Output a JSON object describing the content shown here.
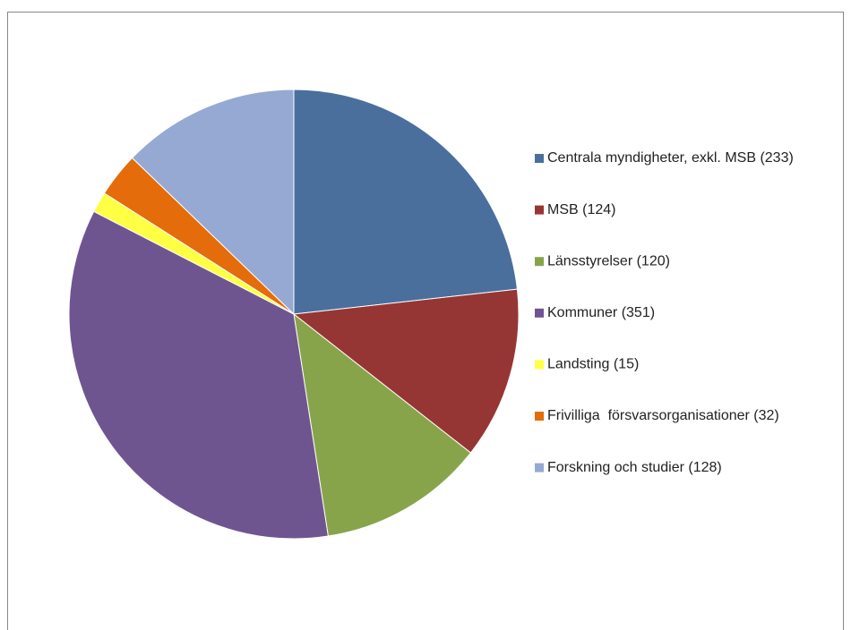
{
  "chart_data": {
    "type": "pie",
    "categories": [
      "Centrala myndigheter, exkl. MSB (233)",
      "MSB (124)",
      "Länsstyrelser (120)",
      "Kommuner (351)",
      "Landsting (15)",
      "Frivilliga  försvarsorganisationer (32)",
      "Forskning och studier (128)"
    ],
    "values": [
      233,
      124,
      120,
      351,
      15,
      32,
      128
    ],
    "colors": [
      "#4a6f9c",
      "#963634",
      "#88a44b",
      "#6f5590",
      "#ffff44",
      "#e46c0a",
      "#95a9d3"
    ],
    "legend": "right"
  }
}
